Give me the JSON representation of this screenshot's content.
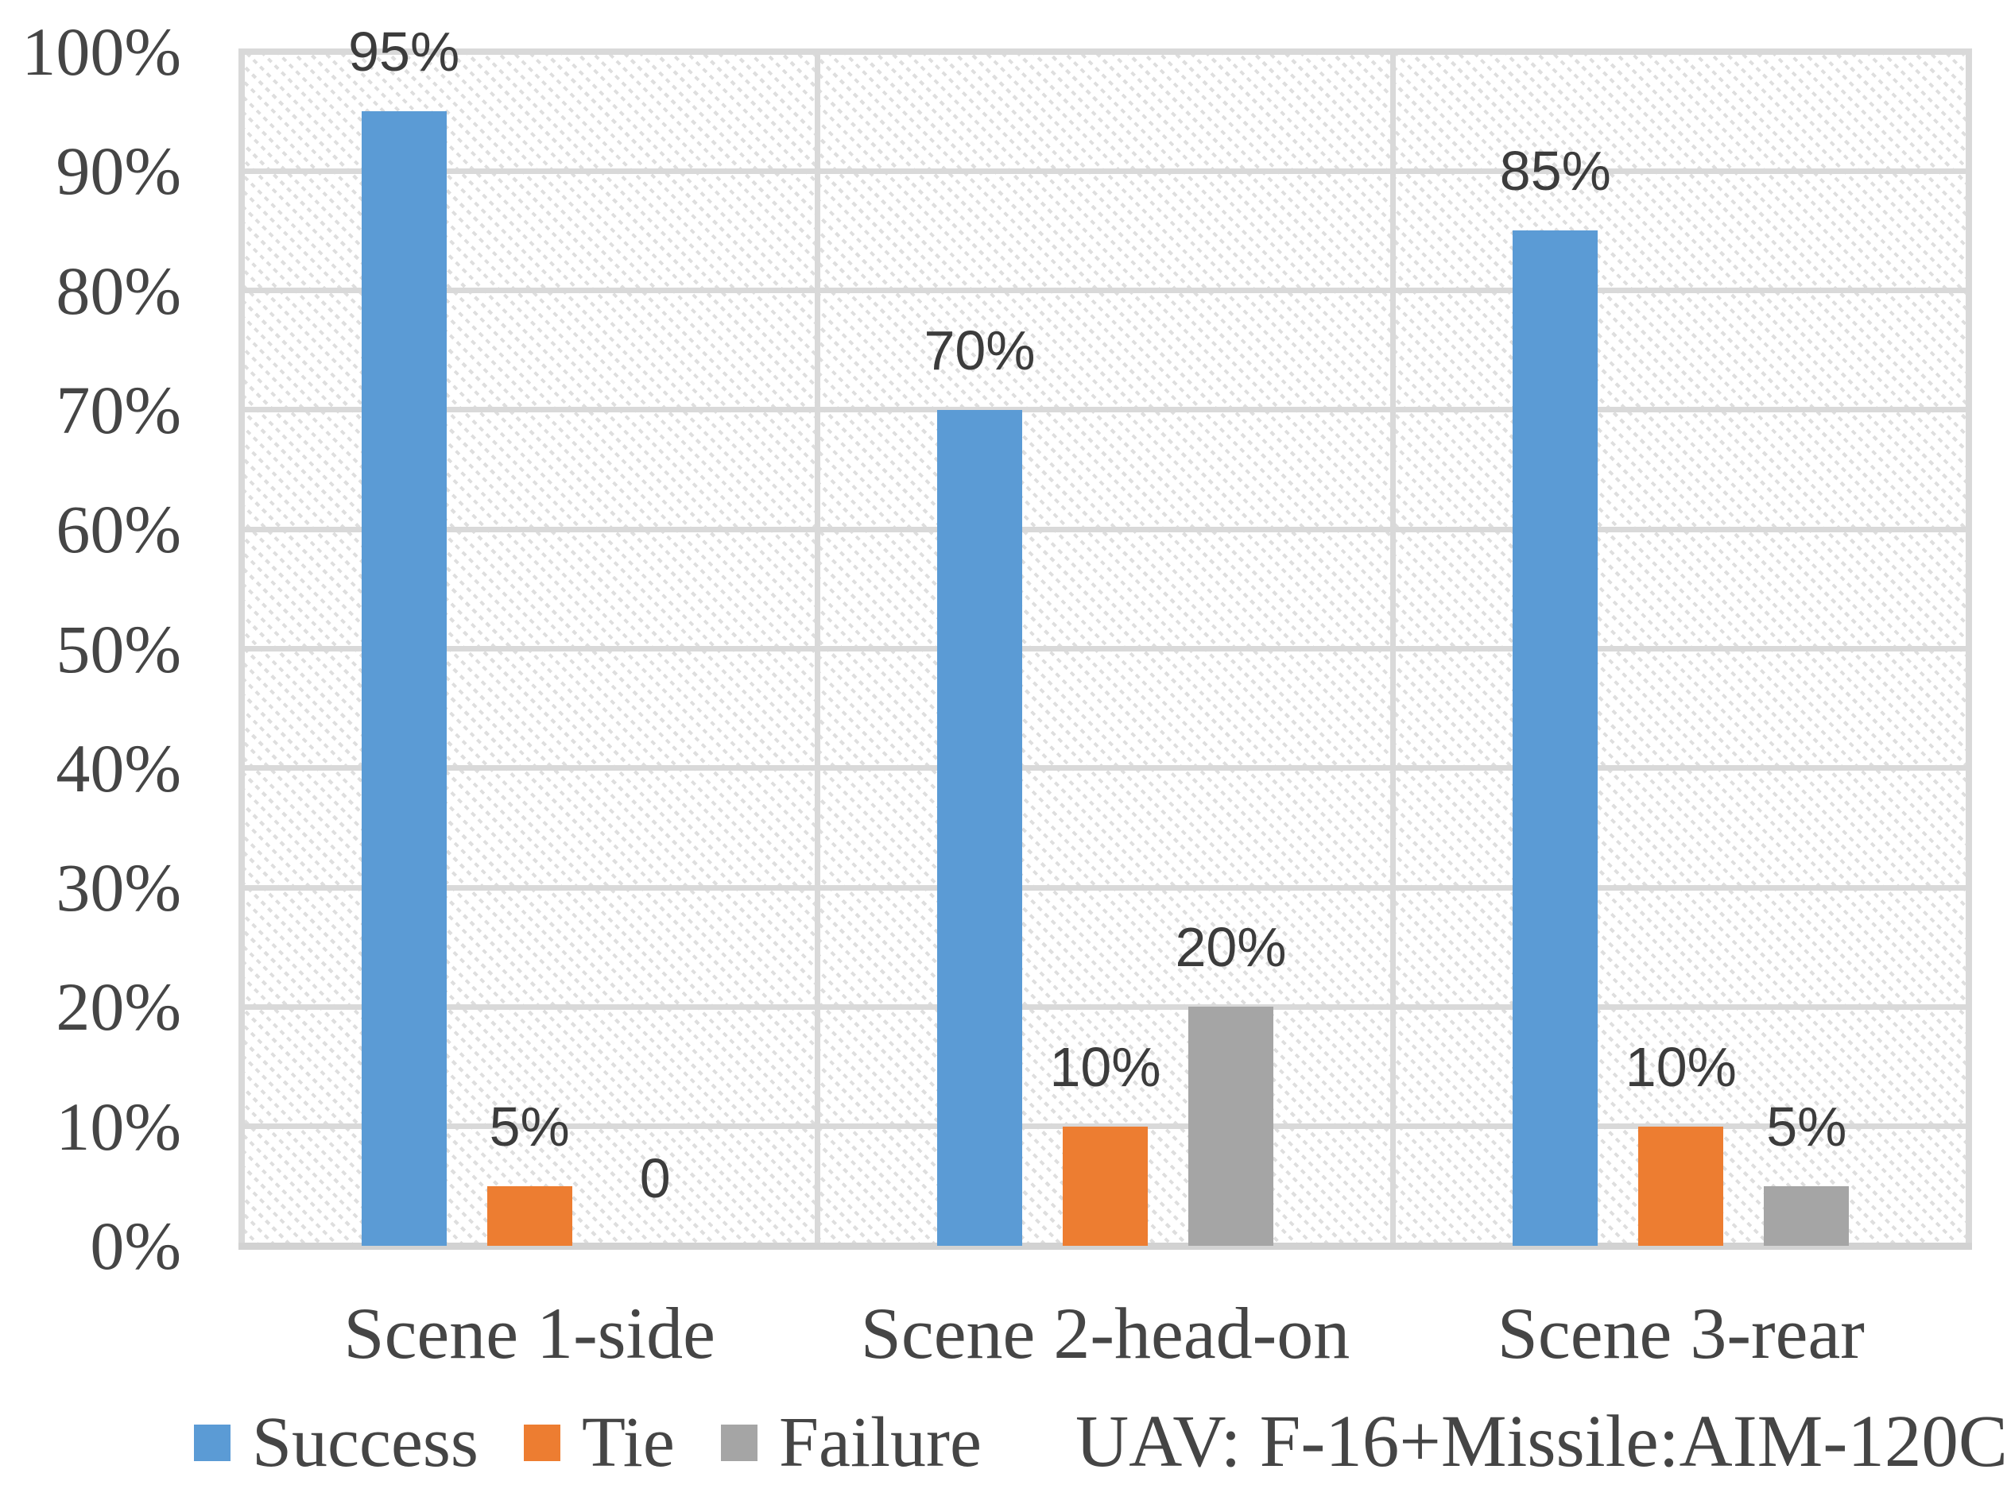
{
  "chart_data": {
    "type": "bar",
    "title": "",
    "categories": [
      "Scene 1-side",
      "Scene 2-head-on",
      "Scene 3-rear"
    ],
    "series": [
      {
        "name": "Success",
        "color": "#5B9BD5",
        "values": [
          95,
          70,
          85
        ],
        "data_labels": [
          "95%",
          "70%",
          "85%"
        ]
      },
      {
        "name": "Tie",
        "color": "#ED7D31",
        "values": [
          5,
          10,
          10
        ],
        "data_labels": [
          "5%",
          "10%",
          "10%"
        ]
      },
      {
        "name": "Failure",
        "color": "#A5A5A5",
        "values": [
          0,
          20,
          5
        ],
        "data_labels": [
          "0",
          "20%",
          "5%"
        ]
      }
    ],
    "y_axis": {
      "min": 0,
      "max": 100,
      "step": 10,
      "unit": "%",
      "tick_labels": [
        "0%",
        "10%",
        "20%",
        "30%",
        "40%",
        "50%",
        "60%",
        "70%",
        "80%",
        "90%",
        "100%"
      ]
    },
    "ylim": [
      0,
      100
    ],
    "grid": true,
    "legend": {
      "position": "bottom",
      "entries": [
        "Success",
        "Tie",
        "Failure"
      ]
    },
    "annotation": "UAV: F-16+Missile:AIM-120C",
    "style": {
      "gridline_color": "#D9D9D9",
      "axis_line_color": "#D2D2D2",
      "hatch_color": "#DEDEDE",
      "axis_text_color": "#454545",
      "data_label_color": "#3C3C3C"
    }
  }
}
